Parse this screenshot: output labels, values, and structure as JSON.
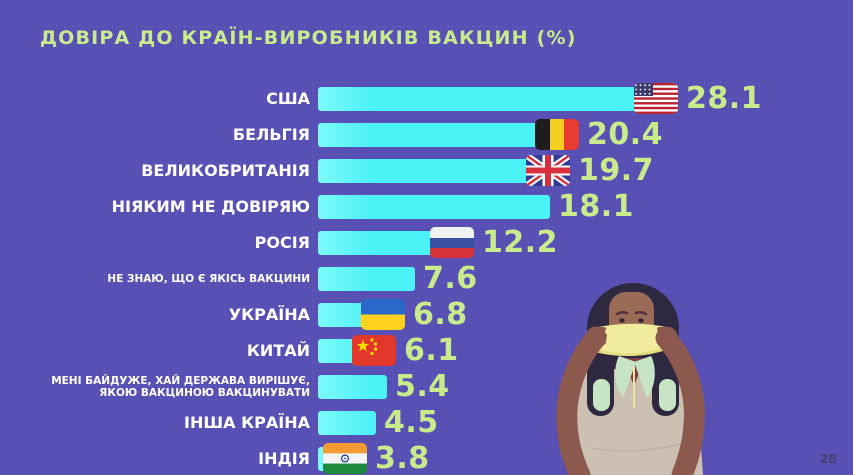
{
  "page_number": "28",
  "colors": {
    "background": "#584FB5",
    "bar": "#4BF2F5",
    "accent_green": "#C8EC8C",
    "label_white": "#FFFFFF"
  },
  "illustration": {
    "name": "woman-putting-on-face-mask"
  },
  "chart_data": {
    "type": "bar",
    "orientation": "horizontal",
    "title": "ДОВІРА ДО КРАЇН-ВИРОБНИКІВ ВАКЦИН (%)",
    "unit": "%",
    "xlim": [
      0,
      30
    ],
    "legend": "none",
    "grid": false,
    "rows": [
      {
        "label": "США",
        "value": 28.1,
        "flag": "usa",
        "small": false
      },
      {
        "label": "БЕЛЬГІЯ",
        "value": 20.4,
        "flag": "belgium",
        "small": false
      },
      {
        "label": "ВЕЛИКОБРИТАНІЯ",
        "value": 19.7,
        "flag": "uk",
        "small": false
      },
      {
        "label": "НІЯКИМ НЕ ДОВІРЯЮ",
        "value": 18.1,
        "flag": null,
        "small": false
      },
      {
        "label": "РОСІЯ",
        "value": 12.2,
        "flag": "russia",
        "small": false
      },
      {
        "label": "НЕ ЗНАЮ, ЩО Є ЯКІСЬ ВАКЦИНИ",
        "value": 7.6,
        "flag": null,
        "small": true
      },
      {
        "label": "УКРАЇНА",
        "value": 6.8,
        "flag": "ukraine",
        "small": false
      },
      {
        "label": "КИТАЙ",
        "value": 6.1,
        "flag": "china",
        "small": false
      },
      {
        "label": "МЕНІ БАЙДУЖЕ, ХАЙ ДЕРЖАВА ВИРІШУЄ,\nЯКОЮ ВАКЦИНОЮ ВАКЦИНУВАТИ",
        "value": 5.4,
        "flag": null,
        "small": true
      },
      {
        "label": "ІНША КРАЇНА",
        "value": 4.5,
        "flag": null,
        "small": false
      },
      {
        "label": "ІНДІЯ",
        "value": 3.8,
        "flag": "india",
        "small": false
      }
    ]
  }
}
